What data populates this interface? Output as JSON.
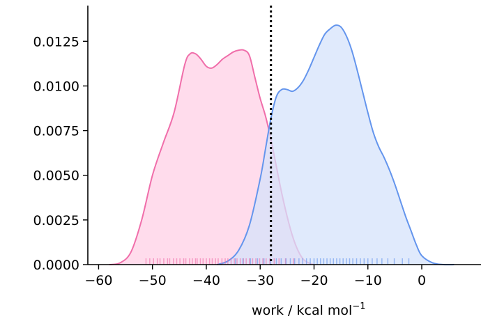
{
  "chart_data": {
    "type": "area",
    "title": "",
    "xlabel": "work / kcal mol",
    "xlabel_superscript": "−1",
    "ylabel": "",
    "xlim": [
      -62,
      11
    ],
    "ylim": [
      0,
      0.0145
    ],
    "grid": false,
    "legend": "none",
    "xticks": [
      -60,
      -50,
      -40,
      -30,
      -20,
      -10,
      0
    ],
    "xtick_labels": [
      "−60",
      "−50",
      "−40",
      "−30",
      "−20",
      "−10",
      "0"
    ],
    "yticks": [
      0,
      0.0025,
      0.005,
      0.0075,
      0.01,
      0.0125
    ],
    "ytick_labels": [
      "0.0000",
      "0.0025",
      "0.0050",
      "0.0075",
      "0.0100",
      "0.0125"
    ],
    "vline": {
      "x": -28,
      "style": "dotted",
      "color": "#000000"
    },
    "series": [
      {
        "color": "#f06eaa",
        "fill": "#ffd0e6",
        "x": [
          -58,
          -56,
          -54,
          -52,
          -50,
          -48,
          -46,
          -44,
          -43,
          -42,
          -41,
          -40,
          -39,
          -38,
          -37,
          -36,
          -35,
          -34,
          -33,
          -32,
          -31,
          -30,
          -29,
          -28,
          -27,
          -26,
          -25,
          -24,
          -23,
          -22,
          -21,
          -20
        ],
        "y": [
          0.0,
          0.0001,
          0.0007,
          0.0025,
          0.005,
          0.0068,
          0.0085,
          0.0112,
          0.0118,
          0.0118,
          0.0115,
          0.0111,
          0.011,
          0.0112,
          0.0115,
          0.0117,
          0.0119,
          0.012,
          0.012,
          0.0117,
          0.0105,
          0.0093,
          0.0083,
          0.007,
          0.0055,
          0.004,
          0.0027,
          0.0016,
          0.0008,
          0.0003,
          0.0001,
          0.0
        ],
        "rug": [
          -51.2,
          -50.5,
          -49.8,
          -49.1,
          -48.6,
          -47.9,
          -47.2,
          -46.8,
          -46.1,
          -45.5,
          -44.9,
          -44.2,
          -43.8,
          -43.1,
          -42.6,
          -42.0,
          -41.7,
          -41.1,
          -40.6,
          -40.0,
          -39.4,
          -38.9,
          -38.3,
          -37.8,
          -37.1,
          -36.5,
          -36.0,
          -35.4,
          -34.8,
          -34.3,
          -33.7,
          -33.1,
          -32.6,
          -32.0,
          -31.4,
          -30.8,
          -30.1,
          -29.5,
          -28.9,
          -28.2,
          -27.4,
          -26.5,
          -25.3,
          -23.8
        ]
      },
      {
        "color": "#6495ed",
        "fill": "#d6e3fb",
        "x": [
          -38,
          -36,
          -34,
          -32,
          -30,
          -29,
          -28,
          -27,
          -26,
          -25,
          -24,
          -23,
          -22,
          -21,
          -20,
          -19,
          -18,
          -17,
          -16,
          -15,
          -14,
          -13,
          -12,
          -11,
          -10,
          -9,
          -8,
          -7,
          -6,
          -5,
          -4,
          -3,
          -2,
          -1,
          0,
          2,
          4,
          6
        ],
        "y": [
          0.0,
          0.0002,
          0.0008,
          0.0022,
          0.0048,
          0.0065,
          0.0082,
          0.0094,
          0.0098,
          0.0098,
          0.0097,
          0.0099,
          0.0103,
          0.0109,
          0.0116,
          0.0123,
          0.0129,
          0.0132,
          0.0134,
          0.0133,
          0.0128,
          0.012,
          0.0109,
          0.0097,
          0.0085,
          0.0074,
          0.0066,
          0.006,
          0.0053,
          0.0045,
          0.0036,
          0.0027,
          0.0019,
          0.0011,
          0.0005,
          0.0001,
          0.0,
          0.0
        ],
        "rug": [
          -34.6,
          -33.2,
          -31.8,
          -30.5,
          -29.3,
          -28.1,
          -27.0,
          -26.1,
          -25.2,
          -24.4,
          -23.6,
          -22.8,
          -22.1,
          -21.4,
          -20.7,
          -20.0,
          -19.4,
          -18.8,
          -18.2,
          -17.6,
          -17.0,
          -16.4,
          -15.8,
          -15.2,
          -14.6,
          -14.0,
          -13.4,
          -12.8,
          -12.1,
          -11.4,
          -10.7,
          -10.0,
          -9.2,
          -8.3,
          -7.4,
          -6.3,
          -5.1,
          -3.6,
          -2.4
        ]
      }
    ]
  }
}
